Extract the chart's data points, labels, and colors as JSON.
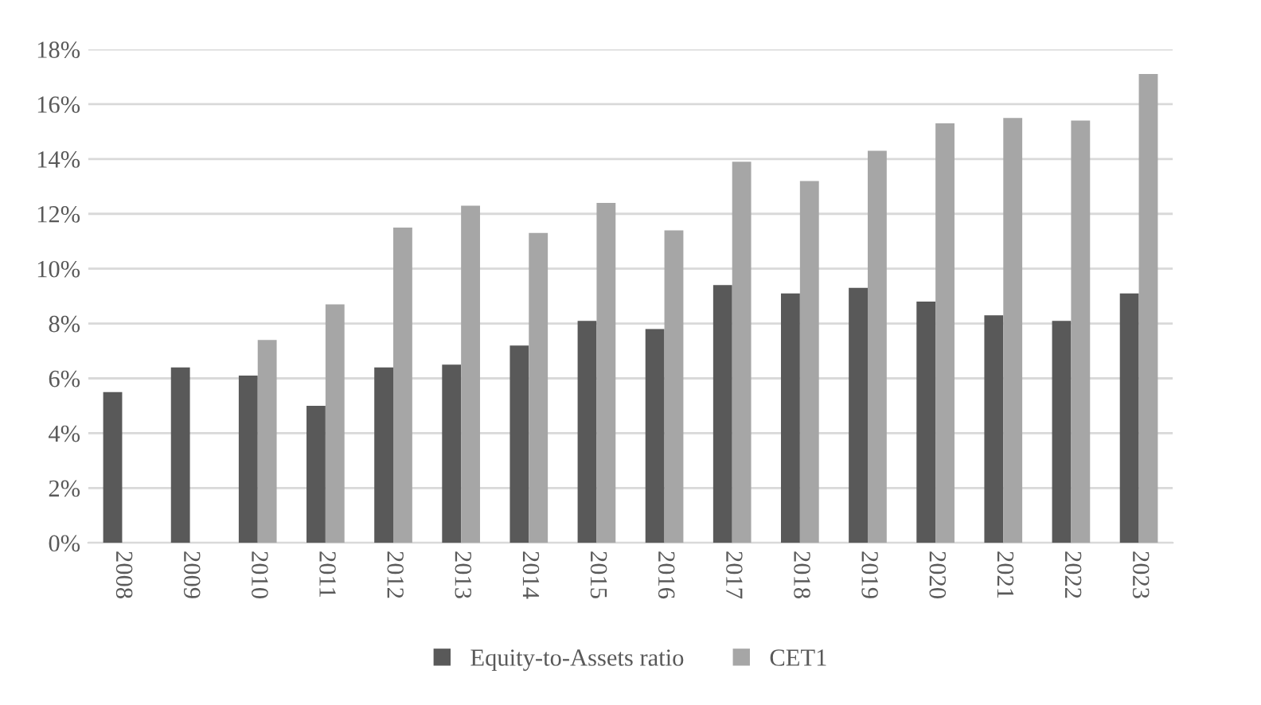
{
  "chart_data": {
    "type": "bar",
    "categories": [
      "2008",
      "2009",
      "2010",
      "2011",
      "2012",
      "2013",
      "2014",
      "2015",
      "2016",
      "2017",
      "2018",
      "2019",
      "2020",
      "2021",
      "2022",
      "2023"
    ],
    "series": [
      {
        "name": "Equity-to-Assets ratio",
        "color": "#595959",
        "values": [
          5.5,
          6.4,
          6.1,
          5.0,
          6.4,
          6.5,
          7.2,
          8.1,
          7.8,
          9.4,
          9.1,
          9.3,
          8.8,
          8.3,
          8.1,
          9.1
        ]
      },
      {
        "name": "CET1",
        "color": "#a6a6a6",
        "values": [
          null,
          null,
          7.4,
          8.7,
          11.5,
          12.3,
          11.3,
          12.4,
          11.4,
          13.9,
          13.2,
          14.3,
          15.3,
          15.5,
          15.4,
          17.1
        ]
      }
    ],
    "ylim": [
      0,
      18
    ],
    "yticks": [
      {
        "value": 0,
        "label": "0%"
      },
      {
        "value": 2,
        "label": "2%"
      },
      {
        "value": 4,
        "label": "4%"
      },
      {
        "value": 6,
        "label": "6%"
      },
      {
        "value": 8,
        "label": "8%"
      },
      {
        "value": 10,
        "label": "10%"
      },
      {
        "value": 12,
        "label": "12%"
      },
      {
        "value": 14,
        "label": "14%"
      },
      {
        "value": 16,
        "label": "16%"
      },
      {
        "value": 18,
        "label": "18%"
      }
    ],
    "grid": "y",
    "legend": "bottom"
  }
}
